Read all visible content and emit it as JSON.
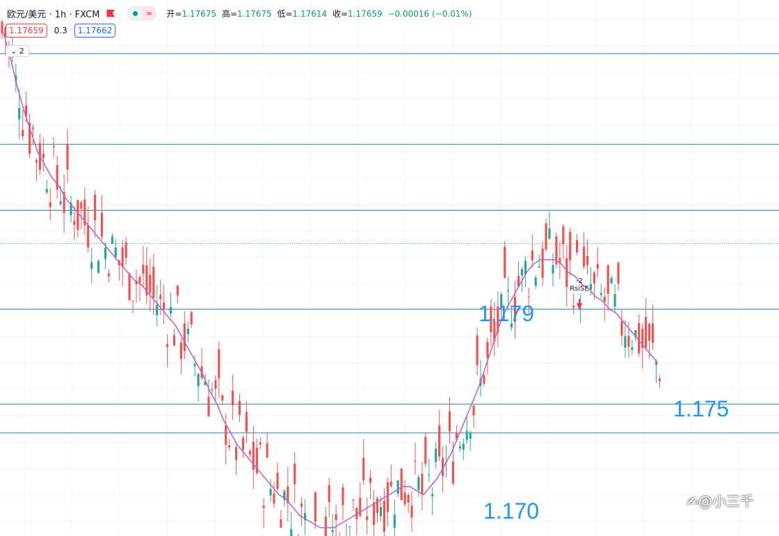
{
  "header": {
    "title": "欧元/美元 · 1h · FXCM",
    "ohlc": [
      {
        "label": "开=",
        "value": "1.17675"
      },
      {
        "label": "高=",
        "value": "1.17675"
      },
      {
        "label": "低=",
        "value": "1.17614"
      },
      {
        "label": "收=",
        "value": "1.17659"
      },
      {
        "label": "",
        "value": "−0.00016 (−0.01%)"
      }
    ]
  },
  "quote": {
    "sell": "1.17659",
    "spread": "0.3",
    "buy": "1.17662"
  },
  "indicator_toggle": "⌄ 2",
  "signal": {
    "count": "-2",
    "label": "RsiSE"
  },
  "watermark": "✍@小三千",
  "colors": {
    "up": "#ef5350",
    "down": "#26a69a",
    "ma": "#b867c6",
    "level": "#2a7ea8",
    "annotation": "#2196f3"
  },
  "chart_data": {
    "type": "candlestick",
    "symbol": "EUR/USD",
    "timeframe": "1h",
    "y_range": [
      1.1695,
      1.1825
    ],
    "level_labels": [
      "1.179",
      "1.175",
      "1.170"
    ],
    "horizontal_levels": [
      1.1812,
      1.179,
      1.1774,
      1.175,
      1.1727,
      1.172
    ],
    "current_price": 1.17659,
    "ma_series": [
      [
        0,
        1.1817
      ],
      [
        1,
        1.1811
      ],
      [
        2,
        1.1804
      ],
      [
        3,
        1.1798
      ],
      [
        4,
        1.1793
      ],
      [
        5,
        1.1788
      ],
      [
        6,
        1.1785
      ],
      [
        7,
        1.1782
      ],
      [
        8,
        1.178
      ],
      [
        9,
        1.1777
      ],
      [
        10,
        1.1775
      ],
      [
        11,
        1.1773
      ],
      [
        12,
        1.1771
      ],
      [
        13,
        1.1769
      ],
      [
        14,
        1.1767
      ],
      [
        15,
        1.1765
      ],
      [
        16,
        1.1763
      ],
      [
        17,
        1.1761
      ],
      [
        18,
        1.1759
      ],
      [
        19,
        1.1757
      ],
      [
        20,
        1.1756
      ],
      [
        21,
        1.1754
      ],
      [
        22,
        1.1752
      ],
      [
        23,
        1.175
      ],
      [
        24,
        1.1748
      ],
      [
        25,
        1.1746
      ],
      [
        26,
        1.1743
      ],
      [
        27,
        1.174
      ],
      [
        28,
        1.1737
      ],
      [
        29,
        1.1734
      ],
      [
        30,
        1.173
      ],
      [
        31,
        1.1727
      ],
      [
        32,
        1.1723
      ],
      [
        33,
        1.172
      ],
      [
        34,
        1.1717
      ],
      [
        35,
        1.1715
      ],
      [
        36,
        1.1713
      ],
      [
        37,
        1.1711
      ],
      [
        38,
        1.1709
      ],
      [
        39,
        1.1707
      ],
      [
        40,
        1.1705
      ],
      [
        41,
        1.1704
      ],
      [
        42,
        1.1702
      ],
      [
        43,
        1.17
      ],
      [
        44,
        1.1699
      ],
      [
        45,
        1.1698
      ],
      [
        46,
        1.1697
      ],
      [
        47,
        1.1697
      ],
      [
        48,
        1.1697
      ],
      [
        49,
        1.1698
      ],
      [
        50,
        1.1699
      ],
      [
        51,
        1.17
      ],
      [
        52,
        1.1701
      ],
      [
        53,
        1.1702
      ],
      [
        54,
        1.1703
      ],
      [
        55,
        1.1704
      ],
      [
        56,
        1.1705
      ],
      [
        57,
        1.1706
      ],
      [
        58,
        1.1707
      ],
      [
        59,
        1.1707
      ],
      [
        60,
        1.1706
      ],
      [
        61,
        1.1705
      ],
      [
        62,
        1.1707
      ],
      [
        63,
        1.1709
      ],
      [
        64,
        1.1712
      ],
      [
        65,
        1.1715
      ],
      [
        66,
        1.1719
      ],
      [
        67,
        1.1723
      ],
      [
        68,
        1.1727
      ],
      [
        69,
        1.1731
      ],
      [
        70,
        1.1736
      ],
      [
        71,
        1.1741
      ],
      [
        72,
        1.1746
      ],
      [
        73,
        1.175
      ],
      [
        74,
        1.1753
      ],
      [
        75,
        1.1756
      ],
      [
        76,
        1.1759
      ],
      [
        77,
        1.1761
      ],
      [
        78,
        1.1762
      ],
      [
        79,
        1.1762
      ],
      [
        80,
        1.1762
      ],
      [
        81,
        1.1761
      ],
      [
        82,
        1.1759
      ],
      [
        83,
        1.1758
      ],
      [
        84,
        1.1756
      ],
      [
        85,
        1.1755
      ],
      [
        86,
        1.1753
      ],
      [
        87,
        1.1752
      ],
      [
        88,
        1.175
      ],
      [
        89,
        1.1749
      ],
      [
        90,
        1.1747
      ],
      [
        91,
        1.1745
      ],
      [
        92,
        1.1743
      ],
      [
        93,
        1.1741
      ],
      [
        94,
        1.1739
      ],
      [
        95,
        1.1737
      ]
    ],
    "ma_series_note_x": "candle index"
  }
}
